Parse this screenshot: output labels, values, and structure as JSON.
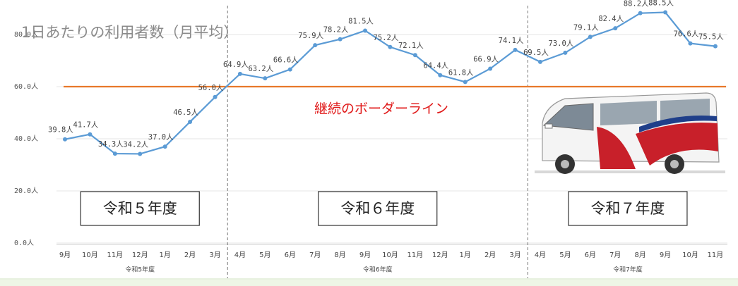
{
  "chart_data": {
    "type": "line",
    "title": "1日あたりの利用者数（月平均）",
    "groups": [
      {
        "name": "令和5年度",
        "banner": "令和５年度",
        "categories": [
          "9月",
          "10月",
          "11月",
          "12月",
          "1月",
          "2月",
          "3月"
        ]
      },
      {
        "name": "令和6年度",
        "banner": "令和６年度",
        "categories": [
          "4月",
          "5月",
          "6月",
          "7月",
          "8月",
          "9月",
          "10月",
          "11月",
          "12月",
          "1月",
          "2月",
          "3月"
        ]
      },
      {
        "name": "令和7年度",
        "banner": "令和７年度",
        "categories": [
          "4月",
          "5月",
          "6月",
          "7月",
          "8月",
          "9月",
          "10月",
          "11月"
        ]
      }
    ],
    "series": [
      {
        "color": "#5b9bd5",
        "values": [
          39.8,
          41.7,
          34.3,
          34.2,
          37.0,
          46.5,
          56.0,
          64.9,
          63.2,
          66.6,
          75.9,
          78.2,
          81.5,
          75.2,
          72.1,
          64.4,
          61.8,
          66.9,
          74.1,
          69.5,
          73.0,
          79.1,
          82.4,
          88.2,
          88.5,
          76.6,
          75.5
        ],
        "value_labels": [
          "39.8人",
          "41.7人",
          "34.3人",
          "34.2人",
          "37.0人",
          "46.5人",
          "56.0人",
          "64.9人",
          "63.2人",
          "66.6人",
          "75.9人",
          "78.2人",
          "81.5人",
          "75.2人",
          "72.1人",
          "64.4人",
          "61.8人",
          "66.9人",
          "74.1人",
          "69.5人",
          "73.0人",
          "79.1人",
          "82.4人",
          "88.2人",
          "88.5人",
          "76.6人",
          "75.5人"
        ]
      }
    ],
    "ylim": [
      0,
      90
    ],
    "yticks": [
      {
        "value": 0,
        "label": "0.0人"
      },
      {
        "value": 20,
        "label": "20.0人"
      },
      {
        "value": 40,
        "label": "40.0人"
      },
      {
        "value": 60,
        "label": "60.0人"
      },
      {
        "value": 80,
        "label": "80.0人"
      }
    ],
    "grid": true,
    "reference_line": {
      "value": 60,
      "label": "継続のボーダーライン",
      "color": "#e8782a",
      "label_color": "#e01818"
    }
  }
}
